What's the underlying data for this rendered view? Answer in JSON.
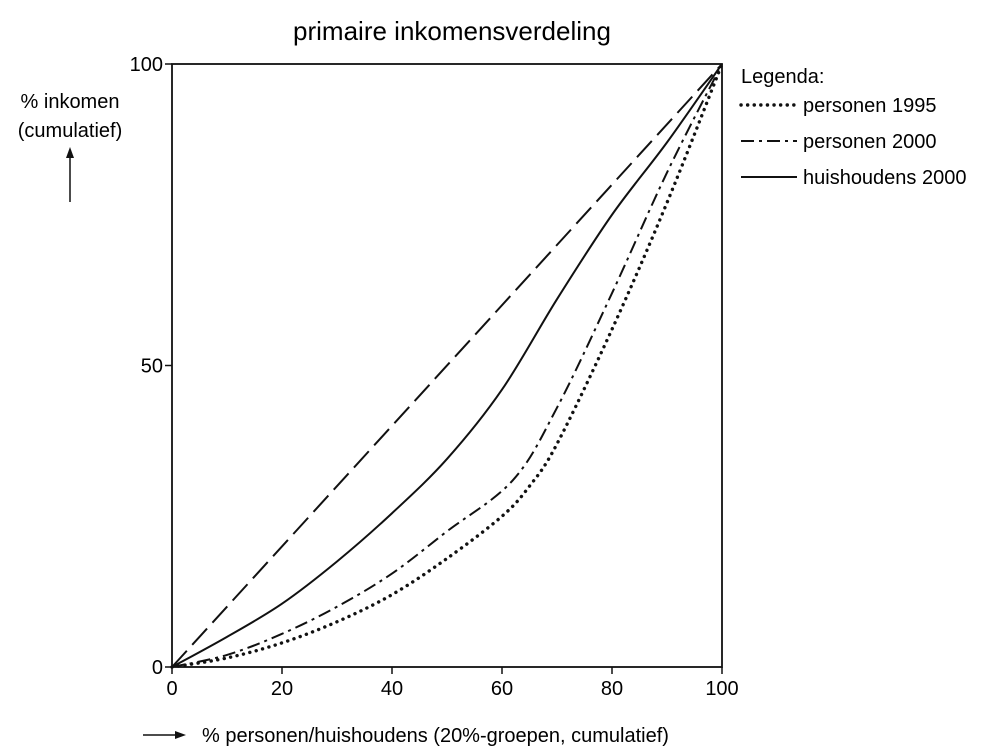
{
  "chart_data": {
    "type": "line",
    "title": "primaire inkomensverdeling",
    "ylabel_lines": [
      "% inkomen",
      "(cumulatief)"
    ],
    "xlabel": "% personen/huishoudens (20%-groepen, cumulatief)",
    "xlim": [
      0,
      100
    ],
    "ylim": [
      0,
      100
    ],
    "x_ticks": [
      0,
      20,
      40,
      60,
      80,
      100
    ],
    "y_ticks": [
      0,
      50,
      100
    ],
    "grid": false,
    "legend": {
      "title": "Legenda:",
      "placement": "right",
      "entries": [
        "personen 1995",
        "personen 2000",
        "huishoudens 2000"
      ]
    },
    "series": [
      {
        "name": "",
        "style": "long-dash",
        "x": [
          0,
          100
        ],
        "y": [
          0,
          100
        ]
      },
      {
        "name": "personen 1995",
        "style": "dotted",
        "x": [
          0,
          10,
          20,
          30,
          40,
          50,
          60,
          65,
          70,
          80,
          90,
          100
        ],
        "y": [
          0,
          1.5,
          4,
          7.5,
          12,
          18,
          25,
          30,
          37,
          56,
          77,
          100
        ]
      },
      {
        "name": "personen 2000",
        "style": "dash-dot",
        "x": [
          0,
          10,
          20,
          30,
          40,
          50,
          62,
          70,
          80,
          90,
          100
        ],
        "y": [
          0,
          2,
          5.5,
          10,
          15.5,
          22.5,
          31,
          43,
          62,
          82,
          100
        ]
      },
      {
        "name": "huishoudens 2000",
        "style": "solid",
        "x": [
          0,
          10,
          20,
          30,
          40,
          50,
          60,
          70,
          80,
          90,
          100
        ],
        "y": [
          0,
          5,
          10.5,
          17.5,
          25.5,
          34.5,
          46,
          61,
          75,
          87,
          100
        ]
      }
    ]
  }
}
